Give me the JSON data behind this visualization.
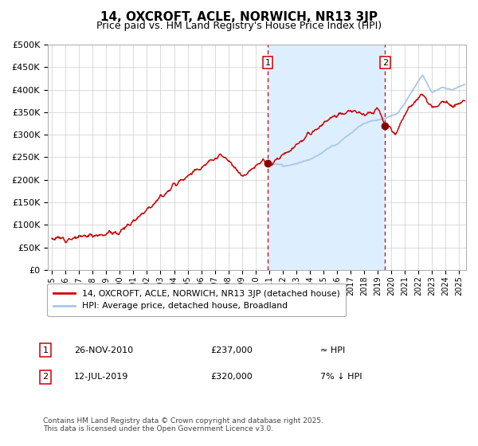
{
  "title": "14, OXCROFT, ACLE, NORWICH, NR13 3JP",
  "subtitle": "Price paid vs. HM Land Registry's House Price Index (HPI)",
  "legend_line1": "14, OXCROFT, ACLE, NORWICH, NR13 3JP (detached house)",
  "legend_line2": "HPI: Average price, detached house, Broadland",
  "annotation1_label": "1",
  "annotation1_date": "26-NOV-2010",
  "annotation1_price": "£237,000",
  "annotation1_hpi": "≈ HPI",
  "annotation2_label": "2",
  "annotation2_date": "12-JUL-2019",
  "annotation2_price": "£320,000",
  "annotation2_hpi": "7% ↓ HPI",
  "footer": "Contains HM Land Registry data © Crown copyright and database right 2025.\nThis data is licensed under the Open Government Licence v3.0.",
  "hpi_color": "#a8c8e8",
  "price_color": "#cc0000",
  "dot_color": "#880000",
  "vline_color": "#cc0000",
  "bg_color": "#ffffff",
  "shaded_color": "#ddeeff",
  "grid_color": "#cccccc",
  "ylim": [
    0,
    500000
  ],
  "xlim_start": 1994.7,
  "xlim_end": 2025.5,
  "sale1_x": 2010.9,
  "sale1_y": 237000,
  "sale2_x": 2019.53,
  "sale2_y": 320000,
  "title_fontsize": 11,
  "subtitle_fontsize": 9,
  "axis_fontsize": 8
}
